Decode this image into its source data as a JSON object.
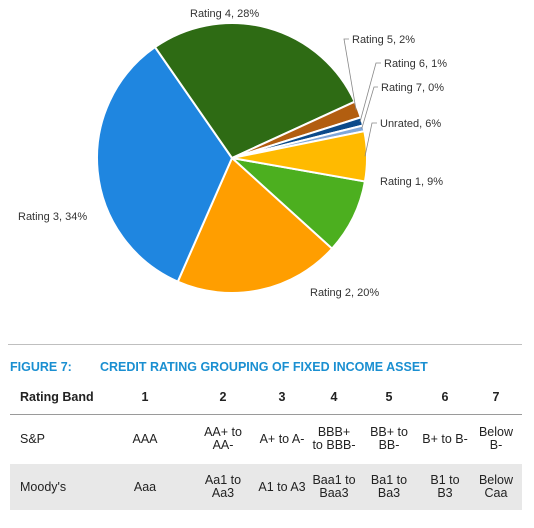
{
  "chart_data": {
    "type": "pie",
    "title": "",
    "slices": [
      {
        "label": "Rating 1",
        "value": 9,
        "display": "Rating 1, 9%",
        "color": "#4caf1f"
      },
      {
        "label": "Rating 2",
        "value": 20,
        "display": "Rating 2, 20%",
        "color": "#ff9e00"
      },
      {
        "label": "Rating 3",
        "value": 34,
        "display": "Rating 3, 34%",
        "color": "#1f86e0"
      },
      {
        "label": "Rating 4",
        "value": 28,
        "display": "Rating 4, 28%",
        "color": "#2e6b14"
      },
      {
        "label": "Rating 5",
        "value": 2,
        "display": "Rating 5, 2%",
        "color": "#b25e10"
      },
      {
        "label": "Rating 6",
        "value": 1,
        "display": "Rating 6, 1%",
        "color": "#0b4a8a"
      },
      {
        "label": "Rating 7",
        "value": 0,
        "display": "Rating 7, 0%",
        "color": "#7fa7d9"
      },
      {
        "label": "Unrated",
        "value": 6,
        "display": "Unrated, 6%",
        "color": "#ffba00"
      }
    ]
  },
  "figure": {
    "number": "FIGURE 7:",
    "title": "CREDIT RATING GROUPING OF FIXED INCOME ASSET"
  },
  "table": {
    "header_first": "Rating Band",
    "bands": [
      "1",
      "2",
      "3",
      "4",
      "5",
      "6",
      "7"
    ],
    "rows": [
      {
        "agency": "S&P",
        "cells": [
          "AAA",
          "AA+ to AA-",
          "A+ to A-",
          "BBB+ to BBB-",
          "BB+ to BB-",
          "B+ to B-",
          "Below B-"
        ]
      },
      {
        "agency": "Moody's",
        "cells": [
          "Aaa",
          "Aa1 to Aa3",
          "A1 to A3",
          "Baa1 to Baa3",
          "Ba1 to Ba3",
          "B1 to B3",
          "Below Caa"
        ]
      }
    ]
  }
}
